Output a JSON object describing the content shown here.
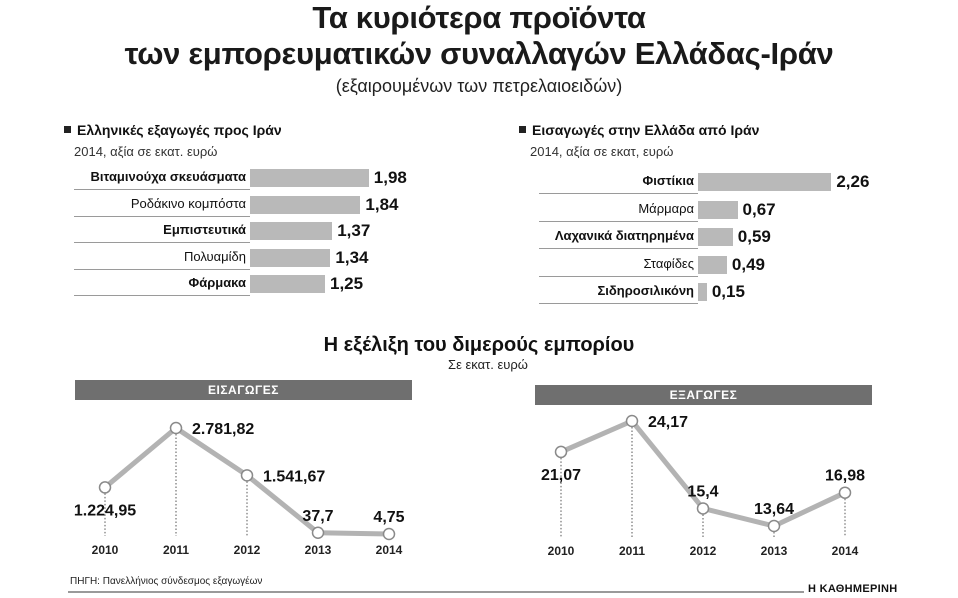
{
  "header": {
    "title_line1": "Τα κυριότερα προϊόντα",
    "title_line2": "των εμπορευματικών συναλλαγών Ελλάδας-Ιράν",
    "subtitle": "(εξαιρουμένων των πετρελαιοειδών)"
  },
  "mid": {
    "title": "Η εξέλιξη του διμερούς εμπορίου",
    "subtitle": "Σε εκατ. ευρώ"
  },
  "footer": {
    "source": "ΠΗΓΗ: Πανελλήνιος σύνδεσμος εξαγωγέων",
    "brand": "Η ΚΑΘΗΜΕΡΙΝΗ"
  },
  "colors": {
    "bar": "#b9b9b9",
    "line": "#b3b3b3",
    "banner": "#6f6f6f",
    "text": "#111111"
  },
  "chart_data": [
    {
      "type": "bar",
      "orientation": "horizontal",
      "title": "Ελληνικές εξαγωγές προς Ιράν",
      "subtitle": "2014, αξία σε εκατ. ευρώ",
      "categories": [
        "Βιταμινούχα σκευάσματα",
        "Ροδάκινο κομπόστα",
        "Εμπιστευτικά",
        "Πολυαμίδη",
        "Φάρμακα"
      ],
      "bold_categories": [
        true,
        false,
        true,
        false,
        true
      ],
      "values": [
        1.98,
        1.84,
        1.37,
        1.34,
        1.25
      ],
      "value_labels": [
        "1,98",
        "1,84",
        "1,37",
        "1,34",
        "1,25"
      ]
    },
    {
      "type": "bar",
      "orientation": "horizontal",
      "title": "Εισαγωγές στην Ελλάδα από Ιράν",
      "subtitle": "2014, αξία σε εκατ, ευρώ",
      "categories": [
        "Φιστίκια",
        "Μάρμαρα",
        "Λαχανικά διατηρημένα",
        "Σταφίδες",
        "Σιδηροσιλικόνη"
      ],
      "bold_categories": [
        true,
        false,
        true,
        false,
        true
      ],
      "values": [
        2.26,
        0.67,
        0.59,
        0.49,
        0.15
      ],
      "value_labels": [
        "2,26",
        "0,67",
        "0,59",
        "0,49",
        "0,15"
      ]
    },
    {
      "type": "line",
      "title": "ΕΙΣΑΓΩΓΕΣ",
      "x": [
        "2010",
        "2011",
        "2012",
        "2013",
        "2014"
      ],
      "values": [
        1224.95,
        2781.82,
        1541.67,
        37.7,
        4.75
      ],
      "value_labels": [
        "1.224,95",
        "2.781,82",
        "1.541,67",
        "37,7",
        "4,75"
      ],
      "label_position": [
        "below",
        "right",
        "right",
        "above",
        "above"
      ]
    },
    {
      "type": "line",
      "title": "ΕΞΑΓΩΓΕΣ",
      "x": [
        "2010",
        "2011",
        "2012",
        "2013",
        "2014"
      ],
      "values": [
        21.07,
        24.17,
        15.4,
        13.64,
        16.98
      ],
      "value_labels": [
        "21,07",
        "24,17",
        "15,4",
        "13,64",
        "16,98"
      ],
      "label_position": [
        "below",
        "right",
        "above",
        "above",
        "above"
      ]
    }
  ]
}
